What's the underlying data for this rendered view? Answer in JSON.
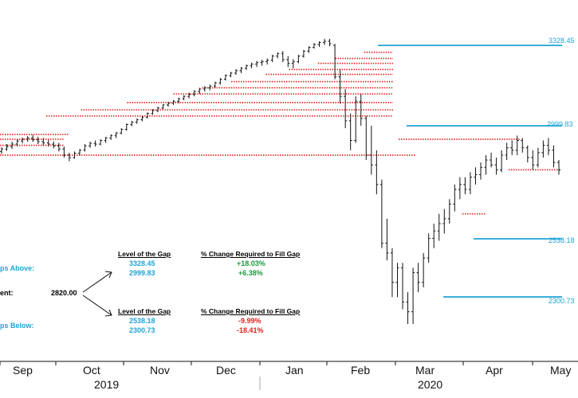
{
  "chart_data": {
    "type": "ohlc",
    "months": [
      "Sep",
      "Oct",
      "Nov",
      "Dec",
      "Jan",
      "Feb",
      "Mar",
      "Apr",
      "May"
    ],
    "years": [
      "2019",
      "2020"
    ],
    "gaps_above": [
      3328.45,
      2999.83
    ],
    "gaps_below": [
      2538.18,
      2300.73
    ],
    "price_labels": [
      "3328.45",
      "2999.83",
      "2538.18",
      "2300.73"
    ],
    "annotation": {
      "gaps_above_label": "ps Above:",
      "current_label": "ent:",
      "current_value": "2820.00",
      "gaps_below_label": "ps Below:",
      "header_level": "Level of the Gap",
      "header_pct": "% Change Required to Fill Gap",
      "above": [
        {
          "level": "3328.45",
          "pct": "+18.03%"
        },
        {
          "level": "2999.83",
          "pct": "+6.38%"
        }
      ],
      "below": [
        {
          "level": "2538.18",
          "pct": "-9.99%"
        },
        {
          "level": "2300.73",
          "pct": "-18.41%"
        }
      ]
    },
    "series": [
      {
        "values": [
          [
            2895,
            2912,
            2885,
            2905
          ],
          [
            2905,
            2925,
            2898,
            2915
          ],
          [
            2915,
            2935,
            2905,
            2925
          ],
          [
            2925,
            2945,
            2915,
            2938
          ],
          [
            2938,
            2952,
            2928,
            2945
          ],
          [
            2945,
            2958,
            2935,
            2950
          ],
          [
            2950,
            2962,
            2935,
            2942
          ],
          [
            2942,
            2955,
            2925,
            2935
          ],
          [
            2935,
            2950,
            2920,
            2930
          ],
          [
            2930,
            2942,
            2915,
            2925
          ],
          [
            2925,
            2936,
            2908,
            2918
          ],
          [
            2918,
            2930,
            2895,
            2905
          ],
          [
            2905,
            2915,
            2870,
            2880
          ],
          [
            2880,
            2890,
            2855,
            2870
          ],
          [
            2870,
            2895,
            2865,
            2888
          ],
          [
            2888,
            2905,
            2880,
            2900
          ],
          [
            2900,
            2925,
            2895,
            2918
          ],
          [
            2918,
            2935,
            2910,
            2928
          ],
          [
            2928,
            2940,
            2915,
            2925
          ],
          [
            2925,
            2945,
            2920,
            2940
          ],
          [
            2940,
            2955,
            2930,
            2950
          ],
          [
            2950,
            2965,
            2942,
            2960
          ],
          [
            2960,
            2975,
            2950,
            2970
          ],
          [
            2970,
            2990,
            2965,
            2985
          ],
          [
            2985,
            3010,
            2980,
            3005
          ],
          [
            3005,
            3020,
            2998,
            3015
          ],
          [
            3015,
            3030,
            3008,
            3025
          ],
          [
            3025,
            3040,
            3018,
            3035
          ],
          [
            3035,
            3055,
            3030,
            3050
          ],
          [
            3050,
            3068,
            3045,
            3062
          ],
          [
            3062,
            3078,
            3055,
            3072
          ],
          [
            3072,
            3088,
            3068,
            3085
          ],
          [
            3085,
            3098,
            3078,
            3092
          ],
          [
            3092,
            3105,
            3085,
            3100
          ],
          [
            3100,
            3115,
            3092,
            3110
          ],
          [
            3110,
            3125,
            3105,
            3120
          ],
          [
            3120,
            3135,
            3112,
            3128
          ],
          [
            3128,
            3145,
            3120,
            3140
          ],
          [
            3140,
            3155,
            3130,
            3150
          ],
          [
            3150,
            3162,
            3140,
            3155
          ],
          [
            3155,
            3168,
            3145,
            3162
          ],
          [
            3162,
            3180,
            3155,
            3175
          ],
          [
            3175,
            3195,
            3168,
            3190
          ],
          [
            3190,
            3210,
            3185,
            3205
          ],
          [
            3205,
            3220,
            3198,
            3215
          ],
          [
            3215,
            3232,
            3208,
            3225
          ],
          [
            3225,
            3240,
            3215,
            3235
          ],
          [
            3235,
            3250,
            3228,
            3245
          ],
          [
            3245,
            3258,
            3235,
            3252
          ],
          [
            3252,
            3265,
            3240,
            3258
          ],
          [
            3258,
            3270,
            3245,
            3262
          ],
          [
            3262,
            3275,
            3250,
            3268
          ],
          [
            3268,
            3290,
            3260,
            3285
          ],
          [
            3285,
            3300,
            3275,
            3295
          ],
          [
            3295,
            3305,
            3260,
            3270
          ],
          [
            3270,
            3285,
            3240,
            3255
          ],
          [
            3255,
            3272,
            3235,
            3262
          ],
          [
            3262,
            3290,
            3255,
            3285
          ],
          [
            3285,
            3310,
            3278,
            3305
          ],
          [
            3305,
            3325,
            3298,
            3320
          ],
          [
            3320,
            3338,
            3315,
            3332
          ],
          [
            3332,
            3345,
            3322,
            3340
          ],
          [
            3340,
            3355,
            3330,
            3345
          ],
          [
            3345,
            3355,
            3325,
            3335
          ],
          [
            3328,
            3335,
            3190,
            3200
          ],
          [
            3200,
            3230,
            3090,
            3120
          ],
          [
            3120,
            3150,
            2990,
            3020
          ],
          [
            3020,
            3050,
            2900,
            2940
          ],
          [
            2940,
            3120,
            2930,
            3100
          ],
          [
            3100,
            3130,
            3000,
            3030
          ],
          [
            3030,
            3040,
            2860,
            2880
          ],
          [
            2880,
            3000,
            2800,
            2840
          ],
          [
            2840,
            2900,
            2720,
            2760
          ],
          [
            2760,
            2780,
            2500,
            2520
          ],
          [
            2520,
            2620,
            2450,
            2480
          ],
          [
            2480,
            2500,
            2300,
            2360
          ],
          [
            2360,
            2440,
            2300,
            2420
          ],
          [
            2420,
            2440,
            2250,
            2280
          ],
          [
            2280,
            2320,
            2190,
            2240
          ],
          [
            2240,
            2420,
            2190,
            2400
          ],
          [
            2400,
            2440,
            2320,
            2360
          ],
          [
            2360,
            2480,
            2340,
            2460
          ],
          [
            2460,
            2560,
            2440,
            2540
          ],
          [
            2540,
            2600,
            2500,
            2570
          ],
          [
            2570,
            2640,
            2530,
            2600
          ],
          [
            2600,
            2660,
            2560,
            2620
          ],
          [
            2620,
            2700,
            2600,
            2680
          ],
          [
            2680,
            2760,
            2650,
            2740
          ],
          [
            2740,
            2790,
            2700,
            2760
          ],
          [
            2760,
            2790,
            2720,
            2740
          ],
          [
            2740,
            2810,
            2720,
            2790
          ],
          [
            2790,
            2830,
            2760,
            2800
          ],
          [
            2800,
            2850,
            2780,
            2830
          ],
          [
            2830,
            2880,
            2800,
            2860
          ],
          [
            2860,
            2890,
            2830,
            2840
          ],
          [
            2840,
            2870,
            2800,
            2820
          ],
          [
            2820,
            2900,
            2810,
            2880
          ],
          [
            2880,
            2930,
            2860,
            2910
          ],
          [
            2910,
            2940,
            2880,
            2900
          ],
          [
            2900,
            2960,
            2880,
            2940
          ],
          [
            2940,
            2950,
            2890,
            2910
          ],
          [
            2910,
            2920,
            2850,
            2870
          ],
          [
            2870,
            2900,
            2820,
            2840
          ],
          [
            2840,
            2910,
            2830,
            2890
          ],
          [
            2890,
            2940,
            2870,
            2920
          ],
          [
            2920,
            2950,
            2880,
            2900
          ],
          [
            2900,
            2920,
            2830,
            2850
          ],
          [
            2850,
            2860,
            2800,
            2820
          ]
        ]
      }
    ]
  }
}
